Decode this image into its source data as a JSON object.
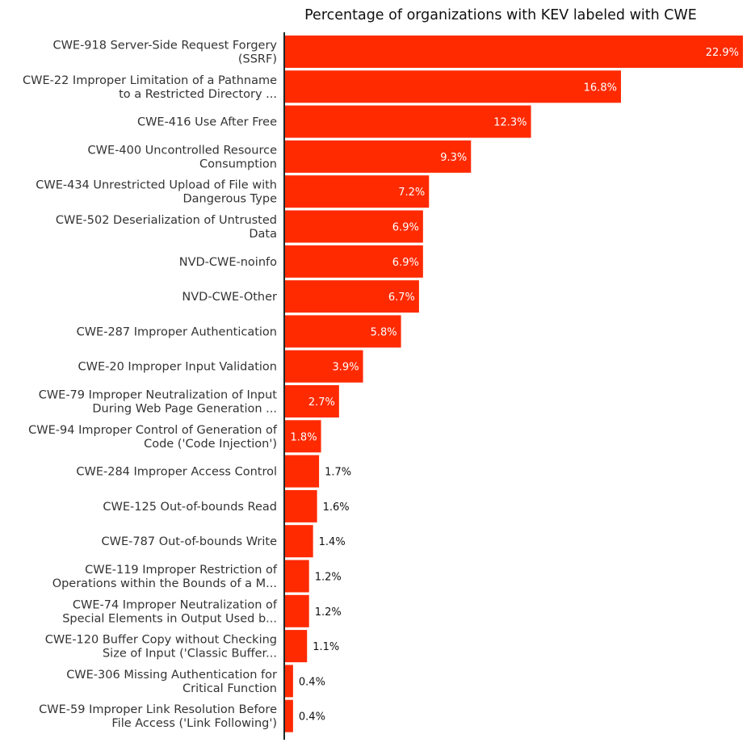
{
  "chart_data": {
    "type": "bar",
    "orientation": "horizontal",
    "title": "Percentage of organizations with KEV labeled with CWE",
    "xlabel": "",
    "ylabel": "",
    "xlim": [
      0,
      22.9
    ],
    "grid": false,
    "bar_color": "#FF2A00",
    "categories": [
      [
        "CWE-918 Server-Side Request Forgery",
        "(SSRF)"
      ],
      [
        "CWE-22 Improper Limitation of a Pathname",
        "to a Restricted Directory ..."
      ],
      [
        "CWE-416 Use After Free"
      ],
      [
        "CWE-400 Uncontrolled Resource",
        "Consumption"
      ],
      [
        "CWE-434 Unrestricted Upload of File with",
        "Dangerous Type"
      ],
      [
        "CWE-502 Deserialization of Untrusted",
        "Data"
      ],
      [
        "NVD-CWE-noinfo"
      ],
      [
        "NVD-CWE-Other"
      ],
      [
        "CWE-287 Improper Authentication"
      ],
      [
        "CWE-20 Improper Input Validation"
      ],
      [
        "CWE-79 Improper Neutralization of Input",
        "During Web Page Generation ..."
      ],
      [
        "CWE-94 Improper Control of Generation of",
        "Code ('Code Injection')"
      ],
      [
        "CWE-284 Improper Access Control"
      ],
      [
        "CWE-125 Out-of-bounds Read"
      ],
      [
        "CWE-787 Out-of-bounds Write"
      ],
      [
        "CWE-119 Improper Restriction of",
        "Operations within the Bounds of a M..."
      ],
      [
        "CWE-74 Improper Neutralization of",
        "Special Elements in Output Used b..."
      ],
      [
        "CWE-120 Buffer Copy without Checking",
        "Size of Input ('Classic Buffer..."
      ],
      [
        "CWE-306 Missing Authentication for",
        "Critical Function"
      ],
      [
        "CWE-59 Improper Link Resolution Before",
        "File Access ('Link Following')"
      ]
    ],
    "values": [
      22.9,
      16.8,
      12.3,
      9.3,
      7.2,
      6.9,
      6.9,
      6.7,
      5.8,
      3.9,
      2.7,
      1.8,
      1.7,
      1.6,
      1.4,
      1.2,
      1.2,
      1.1,
      0.4,
      0.4
    ],
    "data_labels": [
      "22.9%",
      "16.8%",
      "12.3%",
      "9.3%",
      "7.2%",
      "6.9%",
      "6.9%",
      "6.7%",
      "5.8%",
      "3.9%",
      "2.7%",
      "1.8%",
      "1.7%",
      "1.6%",
      "1.4%",
      "1.2%",
      "1.2%",
      "1.1%",
      "0.4%",
      "0.4%"
    ]
  }
}
